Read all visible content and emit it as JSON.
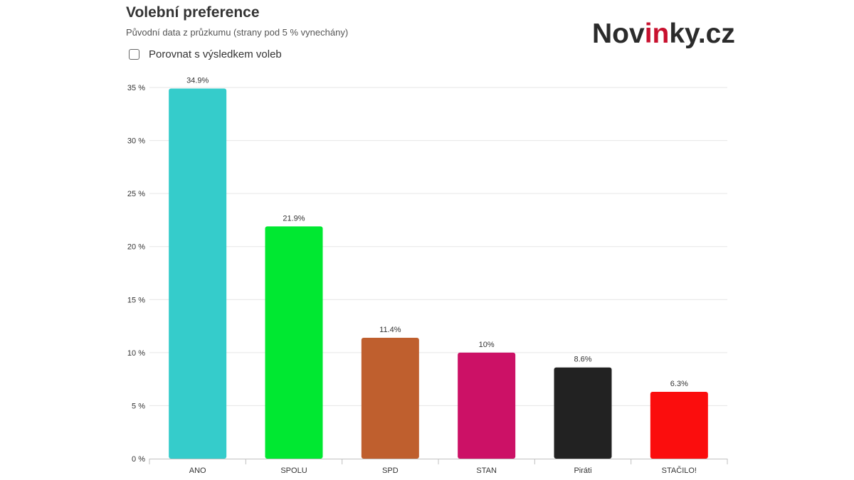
{
  "header": {
    "title": "Volební preference",
    "subtitle": "Původní data z průzkumu (strany pod 5 % vynechány)"
  },
  "logo": {
    "prefix": "Nov",
    "accent": "in",
    "suffix": "ky.cz"
  },
  "compare": {
    "label": "Porovnat s výsledkem voleb",
    "checked": false
  },
  "colors": {
    "grid": "#e6e6e6",
    "axis": "#c0c0c0",
    "text": "#333333",
    "logo_accent": "#c8102e"
  },
  "chart_data": {
    "type": "bar",
    "title": "Volební preference",
    "subtitle": "Původní data z průzkumu (strany pod 5 % vynechány)",
    "categories": [
      "ANO",
      "SPOLU",
      "SPD",
      "STAN",
      "Piráti",
      "STAČILO!"
    ],
    "values": [
      34.9,
      21.9,
      11.4,
      10,
      8.6,
      6.3
    ],
    "value_labels": [
      "34.9%",
      "21.9%",
      "11.4%",
      "10%",
      "8.6%",
      "6.3%"
    ],
    "colors": [
      "#35cccb",
      "#00e831",
      "#bf5f2e",
      "#cc1166",
      "#222222",
      "#fb0d0d"
    ],
    "yticks": [
      0,
      5,
      10,
      15,
      20,
      25,
      30,
      35
    ],
    "ytick_labels": [
      "0 %",
      "5 %",
      "10 %",
      "15 %",
      "20 %",
      "25 %",
      "30 %",
      "35 %"
    ],
    "ylim": [
      0,
      35
    ],
    "grid": true,
    "legend": "none"
  }
}
